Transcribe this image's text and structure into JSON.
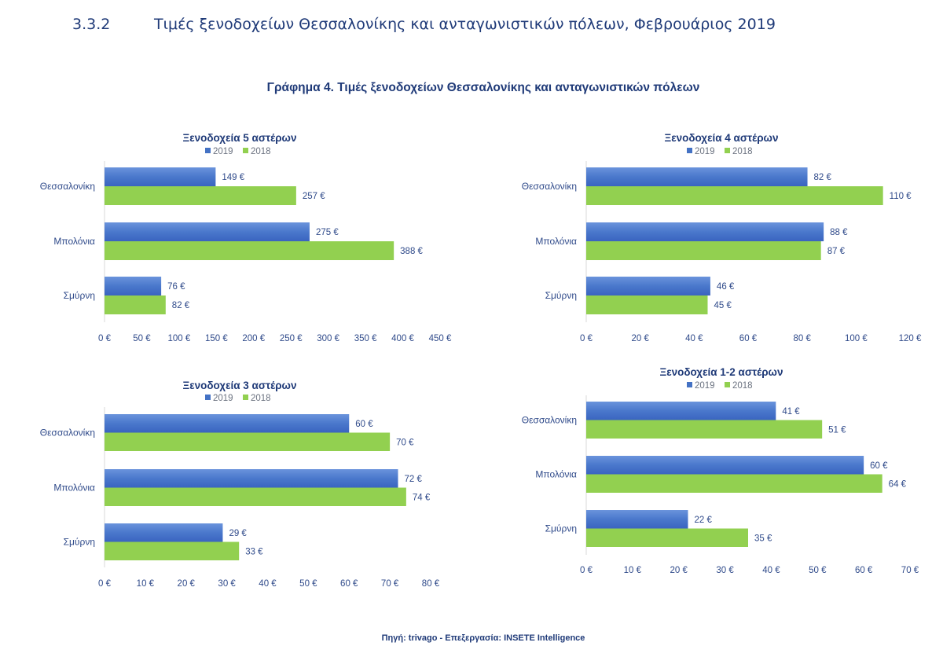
{
  "header": {
    "section_number": "3.3.2",
    "section_title": "Τιμές ξενοδοχείων Θεσσαλονίκης και ανταγωνιστικών πόλεων, Φεβρουάριος 2019"
  },
  "figure_title": "Γράφημα 4. Τιμές ξενοδοχείων Θεσσαλονίκης και ανταγωνιστικών πόλεων",
  "source": "Πηγή: trivago - Επεξεργασία:  INSETE Intelligence",
  "colors": {
    "series_2019": "#4472c4",
    "series_2019_light": "#6a93dc",
    "series_2018": "#92d050",
    "axis": "#d9d9d9"
  },
  "chart_data": [
    {
      "type": "bar",
      "orientation": "horizontal",
      "title": "Ξενοδοχεία 5 αστέρων",
      "categories": [
        "Θεσσαλονίκη",
        "Μπολόνια",
        "Σμύρνη"
      ],
      "series": [
        {
          "name": "2019",
          "values": [
            149,
            275,
            76
          ],
          "labels": [
            "149 €",
            "275 €",
            "76 €"
          ]
        },
        {
          "name": "2018",
          "values": [
            257,
            388,
            82
          ],
          "labels": [
            "257 €",
            "388 €",
            "82 €"
          ]
        }
      ],
      "xlim": [
        0,
        450
      ],
      "xticks": [
        "0 €",
        "50 €",
        "100 €",
        "150 €",
        "200 €",
        "250 €",
        "300 €",
        "350 €",
        "400 €",
        "450 €"
      ],
      "legend": "top-center",
      "grid": false
    },
    {
      "type": "bar",
      "orientation": "horizontal",
      "title": "Ξενοδοχεία 4 αστέρων",
      "categories": [
        "Θεσσαλονίκη",
        "Μπολόνια",
        "Σμύρνη"
      ],
      "series": [
        {
          "name": "2019",
          "values": [
            82,
            88,
            46
          ],
          "labels": [
            "82 €",
            "88 €",
            "46 €"
          ]
        },
        {
          "name": "2018",
          "values": [
            110,
            87,
            45
          ],
          "labels": [
            "110 €",
            "87 €",
            "45 €"
          ]
        }
      ],
      "xlim": [
        0,
        120
      ],
      "xticks": [
        "0 €",
        "20 €",
        "40 €",
        "60 €",
        "80 €",
        "100 €",
        "120 €"
      ],
      "legend": "top-center",
      "grid": false
    },
    {
      "type": "bar",
      "orientation": "horizontal",
      "title": "Ξενοδοχεία 3 αστέρων",
      "categories": [
        "Θεσσαλονίκη",
        "Μπολόνια",
        "Σμύρνη"
      ],
      "series": [
        {
          "name": "2019",
          "values": [
            60,
            72,
            29
          ],
          "labels": [
            "60 €",
            "72 €",
            "29 €"
          ]
        },
        {
          "name": "2018",
          "values": [
            70,
            74,
            33
          ],
          "labels": [
            "70 €",
            "74 €",
            "33 €"
          ]
        }
      ],
      "xlim": [
        0,
        80
      ],
      "xticks": [
        "0 €",
        "10 €",
        "20 €",
        "30 €",
        "40 €",
        "50 €",
        "60 €",
        "70 €",
        "80 €"
      ],
      "legend": "top-center",
      "grid": false
    },
    {
      "type": "bar",
      "orientation": "horizontal",
      "title": "Ξενοδοχεία 1-2 αστέρων",
      "categories": [
        "Θεσσαλονίκη",
        "Μπολόνια",
        "Σμύρνη"
      ],
      "series": [
        {
          "name": "2019",
          "values": [
            41,
            60,
            22
          ],
          "labels": [
            "41 €",
            "60 €",
            "22 €"
          ]
        },
        {
          "name": "2018",
          "values": [
            51,
            64,
            35
          ],
          "labels": [
            "51 €",
            "64 €",
            "35 €"
          ]
        }
      ],
      "xlim": [
        0,
        70
      ],
      "xticks": [
        "0 €",
        "10 €",
        "20 €",
        "30 €",
        "40 €",
        "50 €",
        "60 €",
        "70 €"
      ],
      "legend": "top-center",
      "grid": false
    }
  ]
}
